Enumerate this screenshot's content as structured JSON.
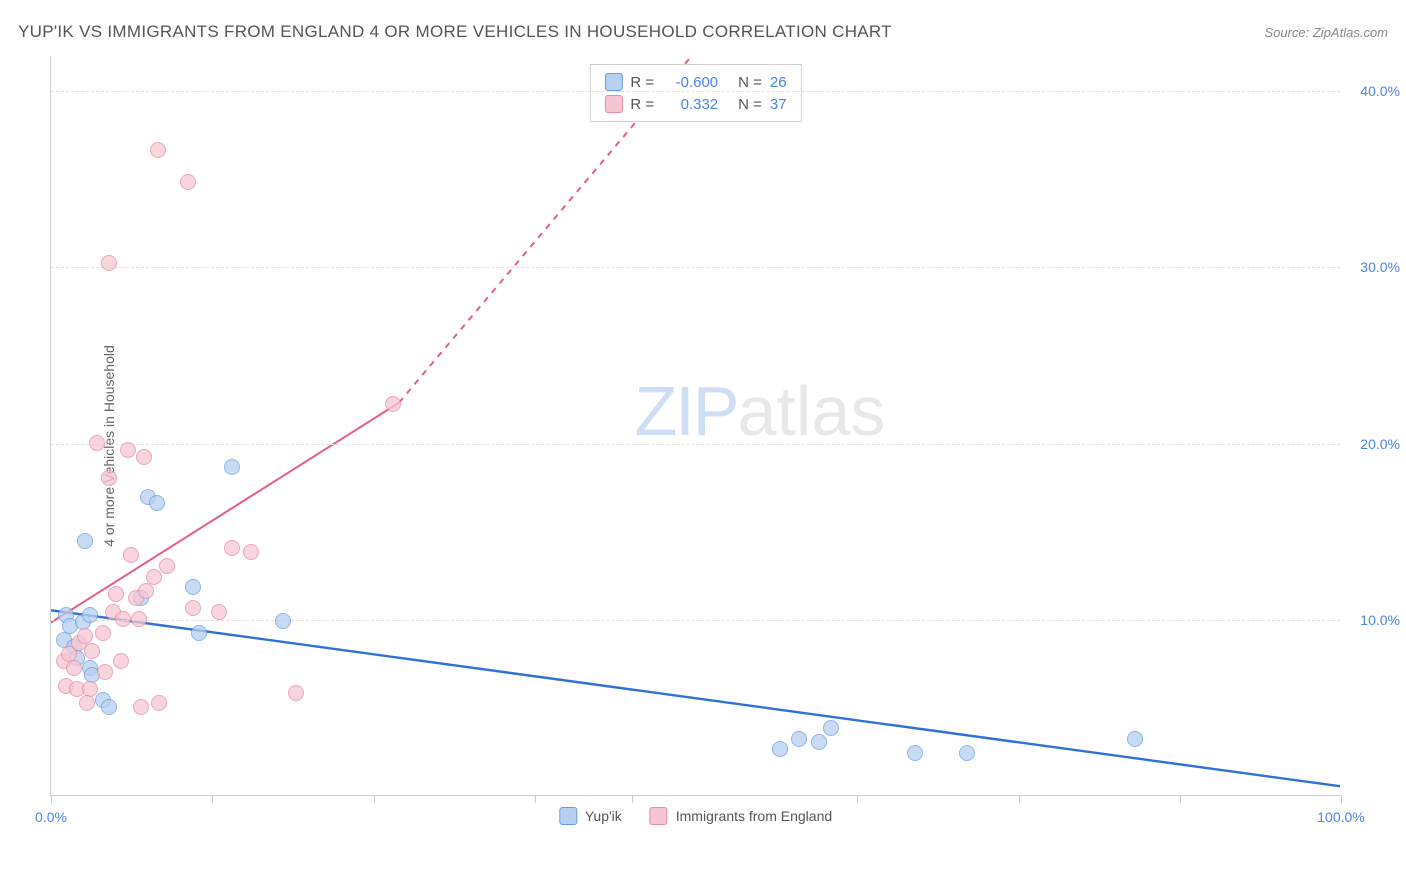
{
  "title": "YUP'IK VS IMMIGRANTS FROM ENGLAND 4 OR MORE VEHICLES IN HOUSEHOLD CORRELATION CHART",
  "source": "Source: ZipAtlas.com",
  "y_axis_label": "4 or more Vehicles in Household",
  "watermark": {
    "zip": "ZIP",
    "atlas": "atlas"
  },
  "chart": {
    "type": "scatter",
    "background_color": "#ffffff",
    "grid_color": "#e0e0e0",
    "axis_color": "#cccccc",
    "tick_label_color": "#4a86e8",
    "xlim": [
      0,
      100
    ],
    "ylim": [
      0,
      42
    ],
    "x_ticks": [
      0,
      12.5,
      25,
      37.5,
      45,
      62.5,
      75,
      87.5,
      100
    ],
    "x_tick_labels": {
      "0": "0.0%",
      "100": "100.0%"
    },
    "y_gridlines": [
      10,
      20,
      30,
      40
    ],
    "y_tick_labels": {
      "10": "10.0%",
      "20": "20.0%",
      "30": "30.0%",
      "40": "40.0%"
    },
    "series": [
      {
        "name": "Yup'ik",
        "color_fill": "#b7cff0",
        "color_stroke": "#6a9fe0",
        "R": "-0.600",
        "N": "26",
        "trend": {
          "x1": 0,
          "y1": 10.5,
          "x2": 100,
          "y2": 0.5,
          "color": "#2f72d4",
          "width": 2.4,
          "dash_after_x": null
        },
        "points": [
          [
            1.2,
            10.2
          ],
          [
            1.5,
            9.6
          ],
          [
            1.0,
            8.8
          ],
          [
            1.8,
            8.4
          ],
          [
            2.5,
            9.8
          ],
          [
            2.0,
            7.8
          ],
          [
            3.0,
            7.2
          ],
          [
            3.2,
            6.8
          ],
          [
            4.0,
            5.4
          ],
          [
            4.5,
            5.0
          ],
          [
            2.6,
            14.4
          ],
          [
            7.5,
            16.9
          ],
          [
            8.2,
            16.6
          ],
          [
            14.0,
            18.6
          ],
          [
            11.5,
            9.2
          ],
          [
            18.0,
            9.9
          ],
          [
            11.0,
            11.8
          ],
          [
            7.0,
            11.2
          ],
          [
            3.0,
            10.2
          ],
          [
            58.0,
            3.2
          ],
          [
            59.5,
            3.0
          ],
          [
            60.5,
            3.8
          ],
          [
            67.0,
            2.4
          ],
          [
            71.0,
            2.4
          ],
          [
            84.0,
            3.2
          ],
          [
            56.5,
            2.6
          ]
        ]
      },
      {
        "name": "Immigants from England",
        "legend_label": "Immigrants from England",
        "color_fill": "#f6c6d2",
        "color_stroke": "#e38ca3",
        "R": "0.332",
        "N": "37",
        "trend": {
          "x1": 0,
          "y1": 9.8,
          "x2_solid": 27,
          "y2_solid": 22.3,
          "x2": 52,
          "y2": 44,
          "color": "#e75d87",
          "width": 2.0,
          "dash_after_x": 27
        },
        "points": [
          [
            1.0,
            7.6
          ],
          [
            1.4,
            8.0
          ],
          [
            1.8,
            7.2
          ],
          [
            2.2,
            8.6
          ],
          [
            2.6,
            9.0
          ],
          [
            1.2,
            6.2
          ],
          [
            2.0,
            6.0
          ],
          [
            3.0,
            6.0
          ],
          [
            4.2,
            7.0
          ],
          [
            5.4,
            7.6
          ],
          [
            3.2,
            8.2
          ],
          [
            4.0,
            9.2
          ],
          [
            4.8,
            10.4
          ],
          [
            5.6,
            10.0
          ],
          [
            6.8,
            10.0
          ],
          [
            5.0,
            11.4
          ],
          [
            6.6,
            11.2
          ],
          [
            7.4,
            11.6
          ],
          [
            8.0,
            12.4
          ],
          [
            9.0,
            13.0
          ],
          [
            6.2,
            13.6
          ],
          [
            4.5,
            18.0
          ],
          [
            6.0,
            19.6
          ],
          [
            7.2,
            19.2
          ],
          [
            3.6,
            20.0
          ],
          [
            4.5,
            30.2
          ],
          [
            8.3,
            36.6
          ],
          [
            10.6,
            34.8
          ],
          [
            26.5,
            22.2
          ],
          [
            14.0,
            14.0
          ],
          [
            15.5,
            13.8
          ],
          [
            11.0,
            10.6
          ],
          [
            13.0,
            10.4
          ],
          [
            19.0,
            5.8
          ],
          [
            7.0,
            5.0
          ],
          [
            8.4,
            5.2
          ],
          [
            2.8,
            5.2
          ]
        ]
      }
    ]
  },
  "legend_top": {
    "r_label": "R =",
    "n_label": "N ="
  },
  "legend_bottom": {
    "items": [
      "Yup'ik",
      "Immigrants from England"
    ]
  }
}
